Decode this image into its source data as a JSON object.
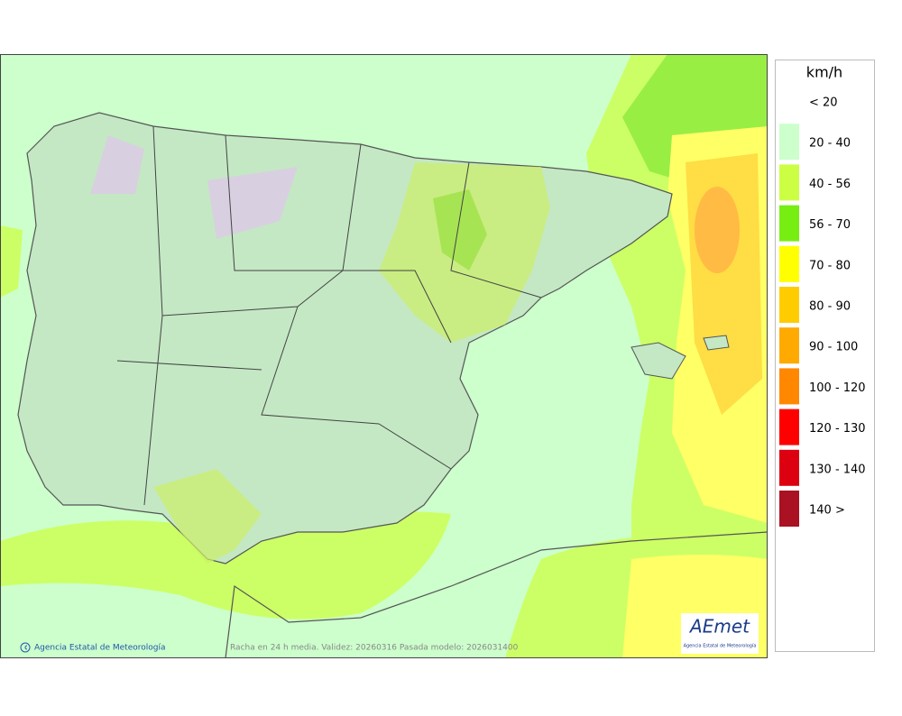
{
  "legend": {
    "unit": "km/h",
    "items": [
      {
        "label": "< 20",
        "color": "#ffffff"
      },
      {
        "label": "20 - 40",
        "color": "#ccffcc"
      },
      {
        "label": "40 - 56",
        "color": "#ccff44"
      },
      {
        "label": "56 - 70",
        "color": "#77ee11"
      },
      {
        "label": "70 - 80",
        "color": "#ffff00"
      },
      {
        "label": "80 - 90",
        "color": "#ffcc00"
      },
      {
        "label": "90 - 100",
        "color": "#ffaa00"
      },
      {
        "label": "100 - 120",
        "color": "#ff8800"
      },
      {
        "label": "120 - 130",
        "color": "#ff0000"
      },
      {
        "label": "130 - 140",
        "color": "#dd0011"
      },
      {
        "label": "140 >",
        "color": "#aa1122"
      }
    ]
  },
  "footer": {
    "credit": "Agencia Estatal de Meteorología",
    "caption": "Racha en 24 h media. Validez: 20260316 Pasada modelo: 2026031400"
  },
  "logo": {
    "name": "AEmet",
    "subtitle": "Agencia Estatal de Meteorología"
  }
}
